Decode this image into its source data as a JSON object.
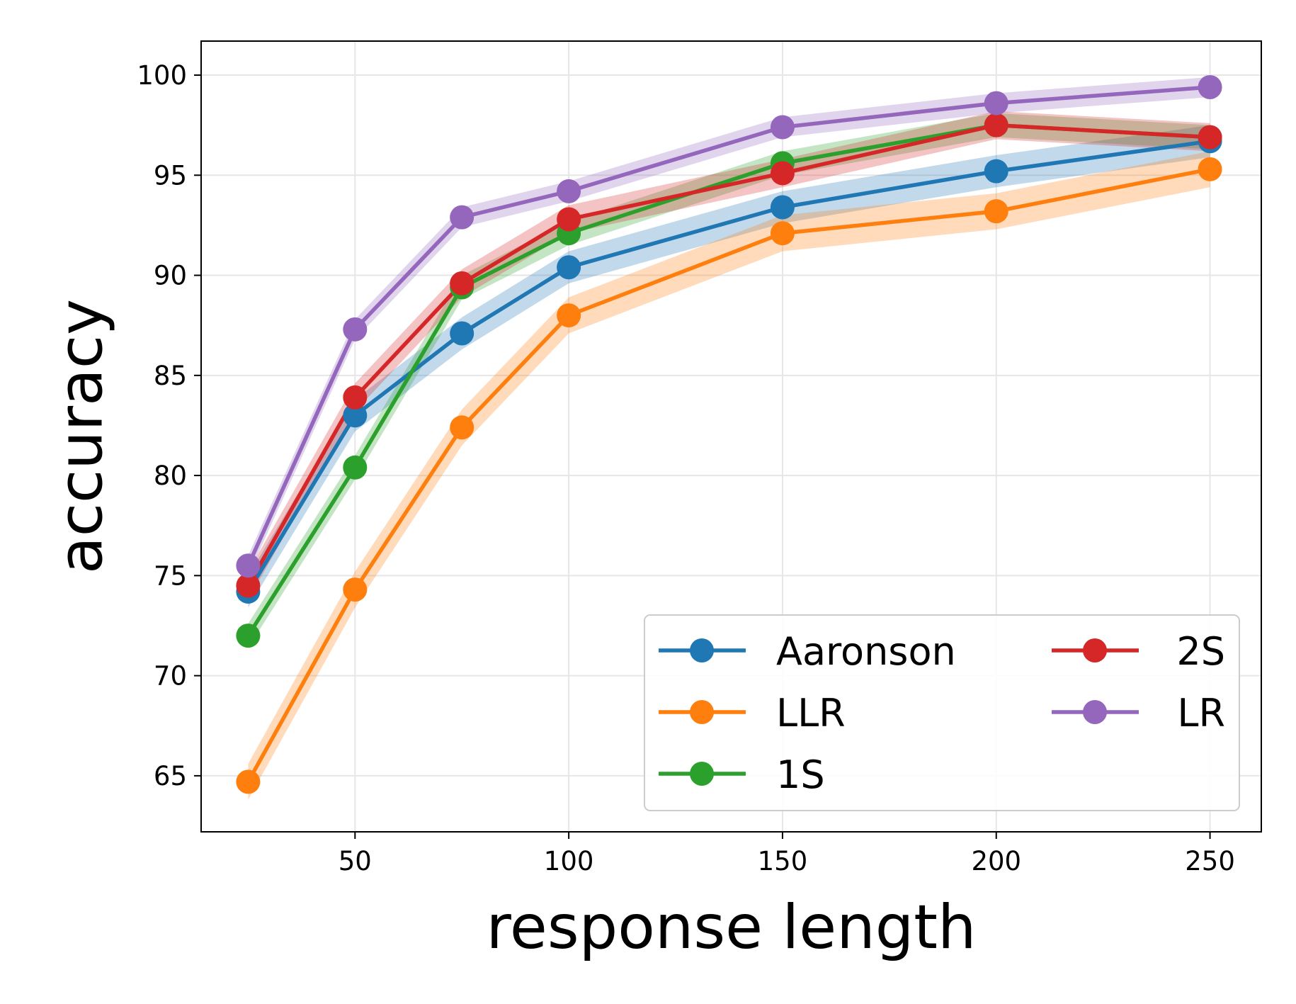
{
  "chart_data": {
    "type": "line",
    "xlabel": "response length",
    "ylabel": "accuracy",
    "x": [
      25,
      50,
      75,
      100,
      150,
      200,
      250
    ],
    "xticks": [
      50,
      100,
      150,
      200,
      250
    ],
    "yticks": [
      65,
      70,
      75,
      80,
      85,
      90,
      95,
      100
    ],
    "xlim": [
      14,
      262
    ],
    "ylim": [
      62.2,
      101.7
    ],
    "grid": true,
    "legend_position": "bottom-right",
    "legend_columns": 2,
    "series": [
      {
        "name": "Aaronson",
        "color": "#1f77b4",
        "values": [
          74.2,
          83.0,
          87.1,
          90.4,
          93.4,
          95.2,
          96.7
        ],
        "band": 0.8
      },
      {
        "name": "LLR",
        "color": "#ff7f0e",
        "values": [
          64.7,
          74.3,
          82.4,
          88.0,
          92.1,
          93.2,
          95.3
        ],
        "band": 0.9
      },
      {
        "name": "1S",
        "color": "#2ca02c",
        "values": [
          72.0,
          80.4,
          89.4,
          92.1,
          95.6,
          97.5,
          96.9
        ],
        "band": 0.6
      },
      {
        "name": "2S",
        "color": "#d62728",
        "values": [
          74.5,
          83.9,
          89.6,
          92.8,
          95.1,
          97.5,
          96.9
        ],
        "band": 0.7
      },
      {
        "name": "LR",
        "color": "#9467bd",
        "values": [
          75.5,
          87.3,
          92.9,
          94.2,
          97.4,
          98.6,
          99.4
        ],
        "band": 0.5
      }
    ]
  }
}
